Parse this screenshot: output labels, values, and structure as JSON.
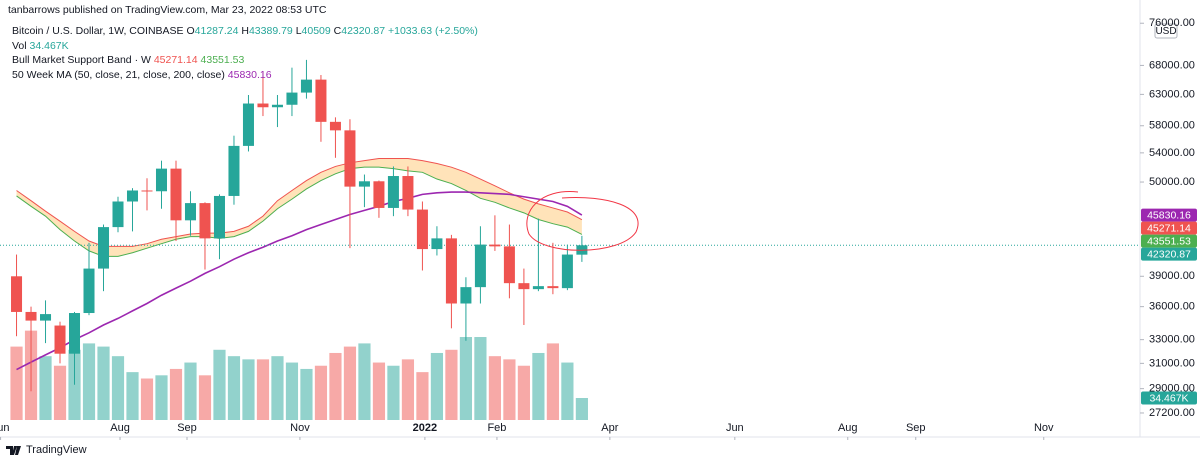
{
  "header": {
    "publisher": "tanbarrows published on TradingView.com, Mar 23, 2022 08:53 UTC",
    "logo": "TradingView"
  },
  "chart_data": {
    "type": "candlestick",
    "title": "Bitcoin / U.S. Dollar, 1W, COINBASE",
    "ohlc_letters": [
      "O",
      "H",
      "L",
      "C"
    ],
    "change": "+1033.63 (+2.50%)",
    "currency": "USD",
    "log_scale": true,
    "grid": false,
    "up_color": "#26a69a",
    "down_color": "#ef5350",
    "x": [
      0,
      1,
      2,
      3,
      4,
      5,
      6,
      7,
      8,
      9,
      10,
      11,
      12,
      13,
      14,
      15,
      16,
      17,
      18,
      19,
      20,
      21,
      22,
      23,
      24,
      25,
      26,
      27,
      28,
      29,
      30,
      31,
      32,
      33,
      34,
      35,
      36,
      37,
      38,
      39
    ],
    "open": [
      39000,
      35500,
      34700,
      34250,
      31800,
      35400,
      39800,
      44400,
      47500,
      48900,
      48800,
      51800,
      45200,
      47300,
      43100,
      48200,
      55000,
      61500,
      60900,
      61300,
      63300,
      65500,
      58600,
      57300,
      49400,
      50100,
      46700,
      50800,
      46500,
      41900,
      43100,
      36300,
      37900,
      42400,
      42200,
      38300,
      37700,
      38000,
      37800,
      41287.24
    ],
    "high": [
      41300,
      36000,
      36600,
      34600,
      35500,
      42600,
      44700,
      48100,
      49200,
      50500,
      52900,
      52900,
      48800,
      47400,
      48400,
      56500,
      62900,
      67000,
      62900,
      67600,
      69000,
      66300,
      59300,
      59000,
      51000,
      50200,
      52100,
      52100,
      47500,
      44500,
      43500,
      38900,
      44500,
      45800,
      44700,
      39800,
      45400,
      42600,
      42400,
      43389.79
    ],
    "low": [
      33300,
      28800,
      32700,
      31000,
      29300,
      35200,
      37500,
      43800,
      43900,
      46400,
      46600,
      42800,
      43400,
      39700,
      40800,
      47100,
      54200,
      59500,
      57800,
      59500,
      62300,
      55600,
      53300,
      42000,
      46800,
      45500,
      45700,
      45700,
      39600,
      41200,
      34000,
      32900,
      36300,
      41700,
      36800,
      34300,
      37500,
      37200,
      37600,
      40509
    ],
    "close": [
      35500,
      34700,
      35300,
      31800,
      35400,
      39800,
      44400,
      47500,
      48900,
      48800,
      51800,
      45200,
      47300,
      43100,
      48200,
      55000,
      61500,
      60900,
      61300,
      63300,
      65500,
      58600,
      57300,
      49400,
      50100,
      46700,
      50800,
      46500,
      41900,
      43100,
      36300,
      37900,
      42400,
      42200,
      38300,
      37700,
      38000,
      37800,
      41300,
      42320.87
    ],
    "xlim": [
      -1.14,
      77.5
    ],
    "xticks": [
      {
        "value": -1.1,
        "label": "Jun"
      },
      {
        "value": 7.14,
        "label": "Aug"
      },
      {
        "value": 11.76,
        "label": "Sep"
      },
      {
        "value": 19.55,
        "label": "Nov"
      },
      {
        "value": 28.17,
        "label": "2022"
      },
      {
        "value": 33.14,
        "label": "Feb"
      },
      {
        "value": 40.93,
        "label": "Apr"
      },
      {
        "value": 49.55,
        "label": "Jun"
      },
      {
        "value": 57.34,
        "label": "Aug"
      },
      {
        "value": 62.03,
        "label": "Sep"
      },
      {
        "value": 70.86,
        "label": "Nov"
      }
    ],
    "ylim": [
      26700,
      80800
    ],
    "yticks": [
      {
        "value": 76000,
        "label": "76000.00"
      },
      {
        "value": 68000,
        "label": "68000.00"
      },
      {
        "value": 63000,
        "label": "63000.00"
      },
      {
        "value": 58000,
        "label": "58000.00"
      },
      {
        "value": 54000,
        "label": "54000.00"
      },
      {
        "value": 50000,
        "label": "50000.00"
      },
      {
        "value": 39000,
        "label": "39000.00"
      },
      {
        "value": 36000,
        "label": "36000.00"
      },
      {
        "value": 33000,
        "label": "33000.00"
      },
      {
        "value": 31000,
        "label": "31000.00"
      },
      {
        "value": 29000,
        "label": "29000.00"
      },
      {
        "value": 27200,
        "label": "27200.00"
      }
    ],
    "volume": {
      "name": "Vol",
      "last_label": "34.467K",
      "ylim": [
        0,
        658000
      ],
      "values": [
        115000,
        140000,
        100000,
        85000,
        110000,
        120000,
        115000,
        100000,
        75000,
        65000,
        70000,
        80000,
        90000,
        70000,
        110000,
        100000,
        95000,
        95000,
        100000,
        90000,
        80000,
        85000,
        105000,
        115000,
        120000,
        90000,
        85000,
        95000,
        75000,
        105000,
        110000,
        130000,
        130000,
        100000,
        95000,
        85000,
        105000,
        120000,
        90000,
        34467
      ]
    },
    "indicators": [
      {
        "name": "Bull Market Support Band · W",
        "fill": "#ffcc80",
        "lines": [
          {
            "color": "#ef5350",
            "values": [
              48900,
              47600,
              46300,
              45100,
              43900,
              42800,
              42200,
              42200,
              42200,
              42500,
              43000,
              43300,
              43600,
              43700,
              43700,
              43900,
              44500,
              45700,
              47600,
              48900,
              50200,
              51300,
              52100,
              52600,
              52900,
              53200,
              53200,
              53200,
              52900,
              52500,
              52000,
              51300,
              50400,
              49500,
              48600,
              47800,
              47200,
              46700,
              46200,
              45271.14
            ]
          },
          {
            "color": "#4caf50",
            "values": [
              48200,
              46900,
              45700,
              44100,
              42800,
              41700,
              41100,
              41100,
              41500,
              42000,
              42500,
              43000,
              43300,
              43300,
              43100,
              43300,
              43900,
              45100,
              46600,
              47800,
              49100,
              50200,
              51100,
              51800,
              52000,
              52000,
              51800,
              51500,
              51300,
              50400,
              49800,
              48900,
              47900,
              47400,
              46700,
              46100,
              45300,
              44800,
              44400,
              43551.53
            ]
          }
        ]
      },
      {
        "name": "50 Week MA (50, close, 21, close, 200, close)",
        "lines": [
          {
            "color": "#9c27b0",
            "values": [
              30500,
              31100,
              31700,
              32300,
              33000,
              33600,
              34300,
              34900,
              35600,
              36300,
              37100,
              37800,
              38500,
              39300,
              40000,
              40800,
              41500,
              42100,
              42800,
              43400,
              44100,
              44700,
              45300,
              45900,
              46400,
              46900,
              47500,
              47900,
              48400,
              48600,
              48700,
              48700,
              48600,
              48500,
              48400,
              48100,
              47800,
              47500,
              46900,
              45830.16
            ]
          }
        ]
      }
    ]
  }
}
